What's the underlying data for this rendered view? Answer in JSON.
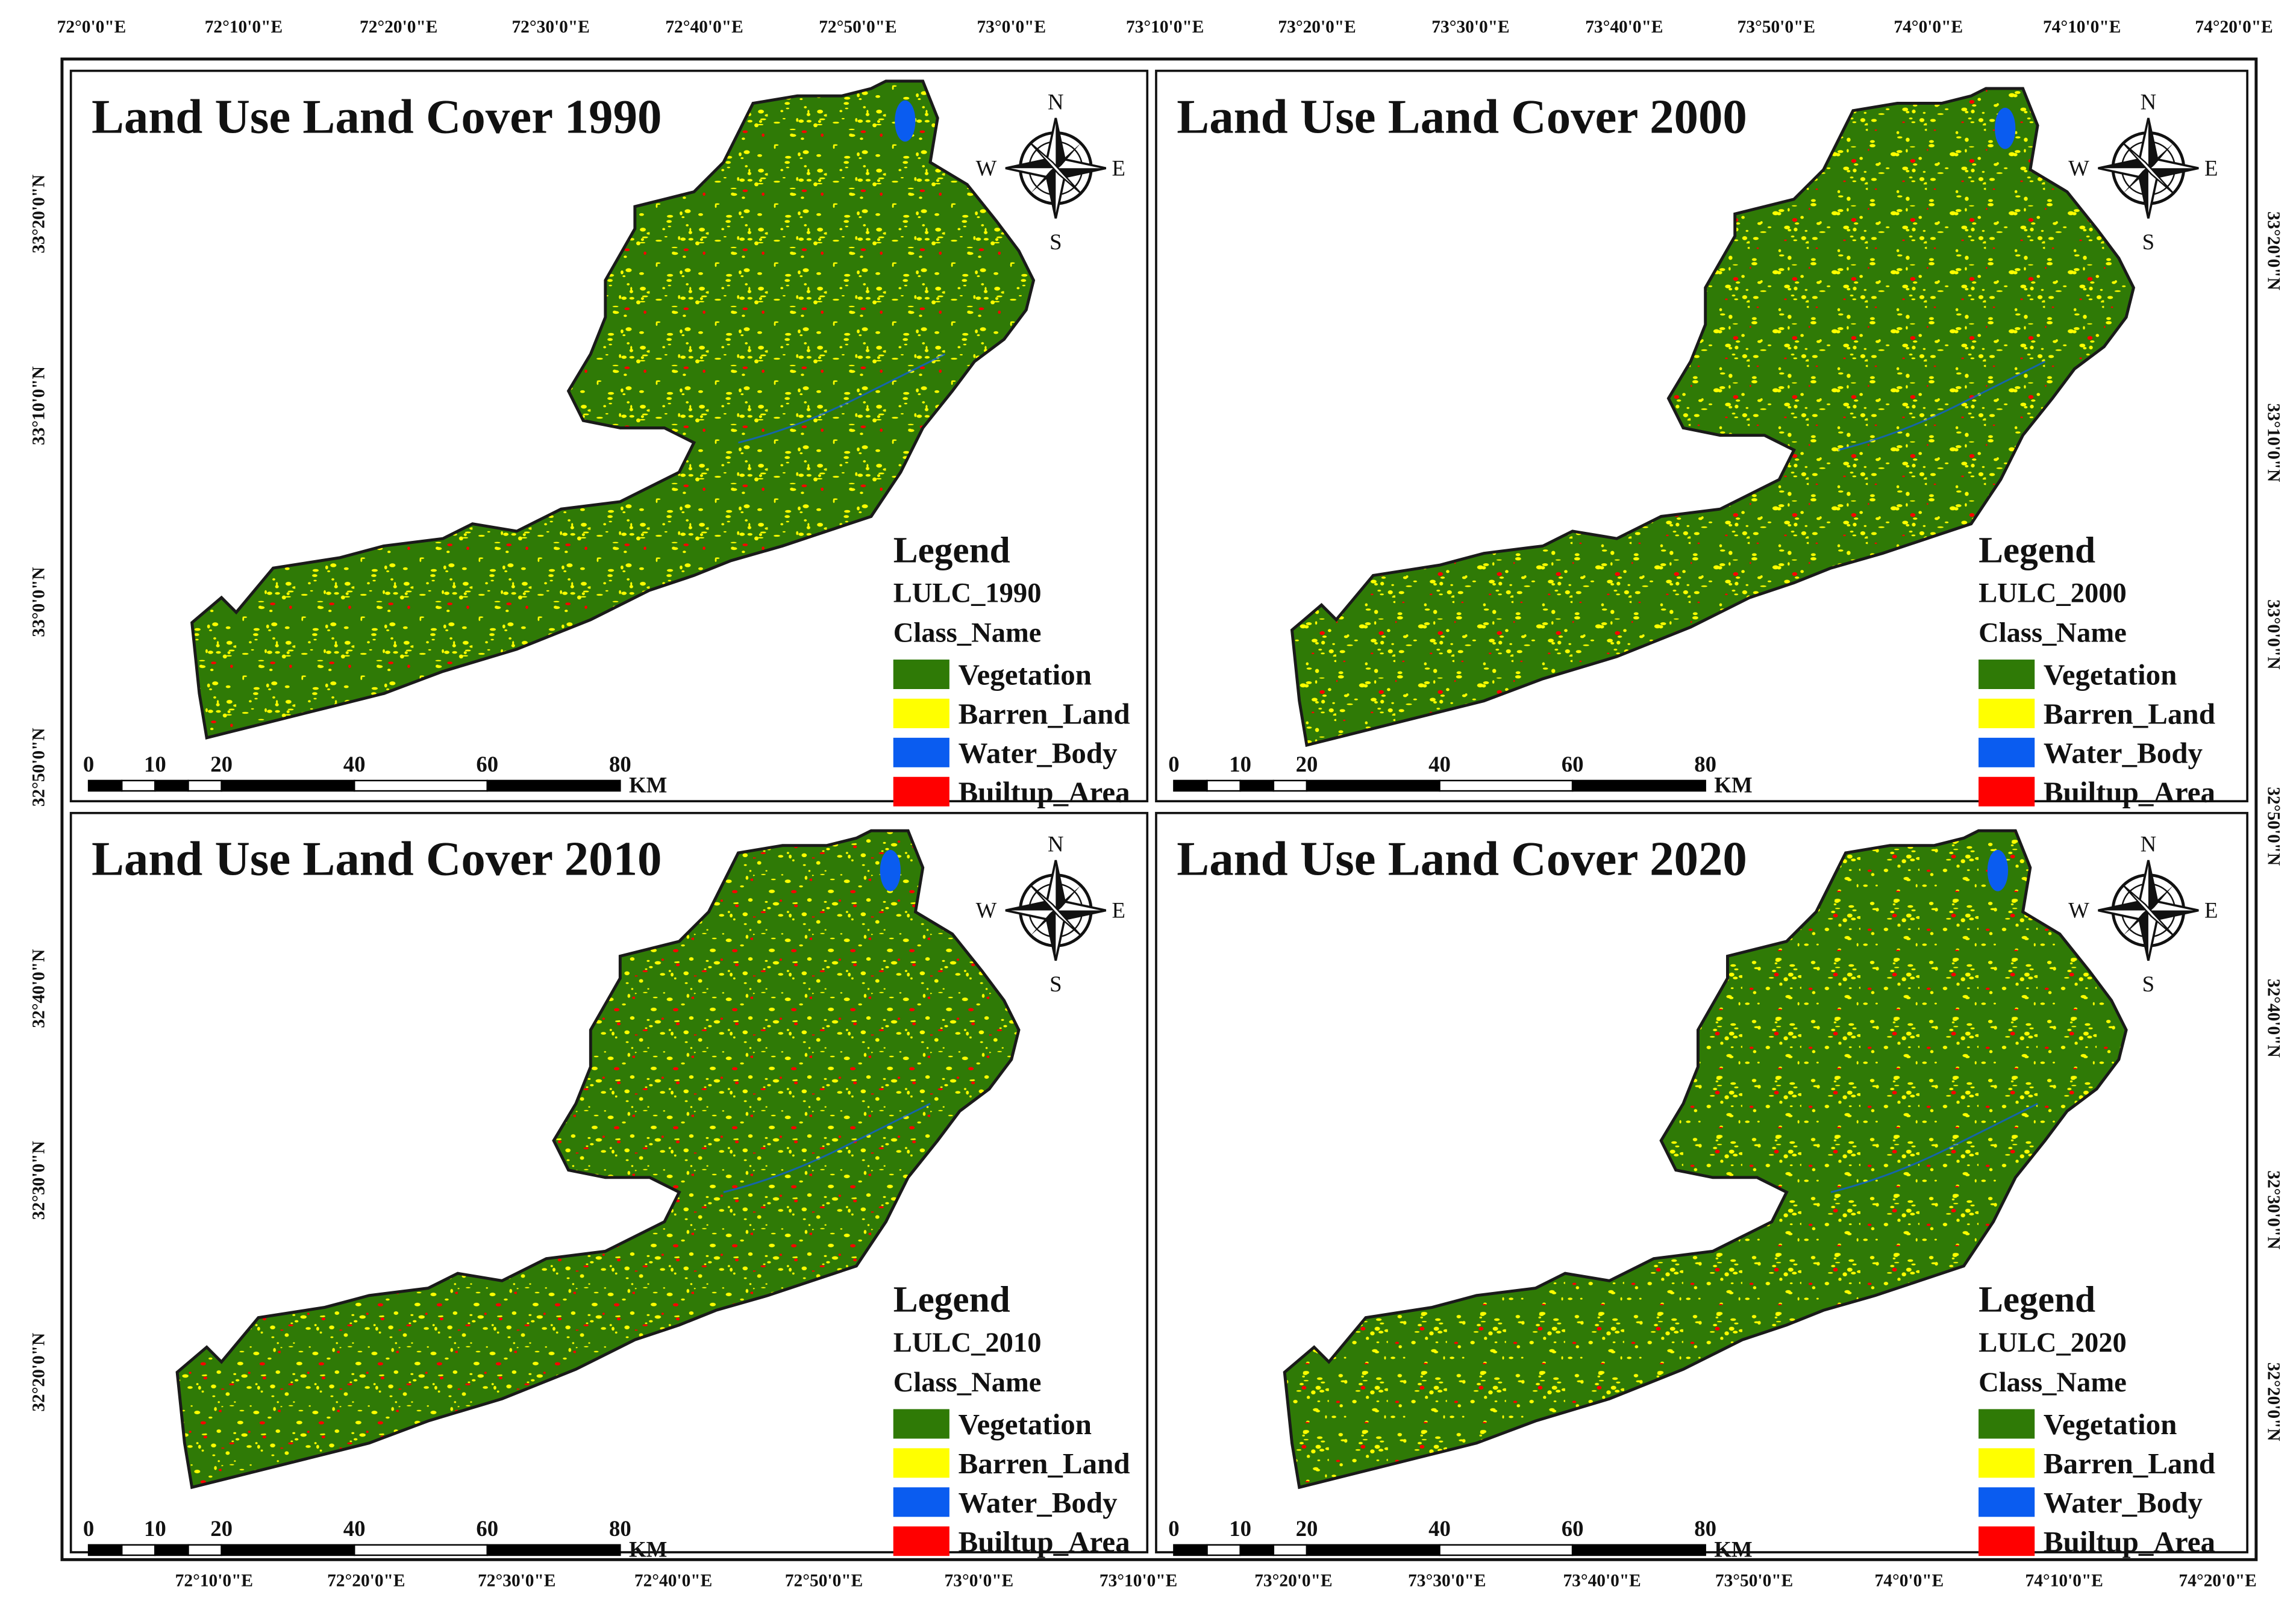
{
  "axes": {
    "top": [
      "72°0'0\"E",
      "72°10'0\"E",
      "72°20'0\"E",
      "72°30'0\"E",
      "72°40'0\"E",
      "72°50'0\"E",
      "73°0'0\"E",
      "73°10'0\"E",
      "73°20'0\"E",
      "73°30'0\"E",
      "73°40'0\"E",
      "73°50'0\"E",
      "74°0'0\"E",
      "74°10'0\"E",
      "74°20'0\"E"
    ],
    "bottom": [
      "72°10'0\"E",
      "72°20'0\"E",
      "72°30'0\"E",
      "72°40'0\"E",
      "72°50'0\"E",
      "73°0'0\"E",
      "73°10'0\"E",
      "73°20'0\"E",
      "73°30'0\"E",
      "73°40'0\"E",
      "73°50'0\"E",
      "74°0'0\"E",
      "74°10'0\"E",
      "74°20'0\"E"
    ],
    "left": [
      "33°20'0\"N",
      "33°10'0\"N",
      "33°0'0\"N",
      "32°50'0\"N",
      "32°40'0\"N",
      "32°30'0\"N",
      "32°20'0\"N"
    ],
    "right": [
      "33°20'0\"N",
      "33°10'0\"N",
      "33°0'0\"N",
      "32°50'0\"N",
      "32°40'0\"N",
      "32°30'0\"N",
      "32°20'0\"N"
    ]
  },
  "panels": [
    {
      "title": "Land Use Land Cover 1990",
      "legend": {
        "heading": "Legend",
        "layer": "LULC_1990",
        "field": "Class_Name",
        "classes": [
          {
            "name": "Vegetation",
            "color": "#2f7a06"
          },
          {
            "name": "Barren_Land",
            "color": "#ffff00"
          },
          {
            "name": "Water_Body",
            "color": "#0a5cf0"
          },
          {
            "name": "Builtup_Area",
            "color": "#ff0000"
          }
        ]
      },
      "compass": {
        "n": "N",
        "s": "S",
        "e": "E",
        "w": "W"
      },
      "scale": {
        "ticks": [
          0,
          10,
          20,
          40,
          60,
          80
        ],
        "unit": "KM"
      }
    },
    {
      "title": "Land Use Land Cover 2000",
      "legend": {
        "heading": "Legend",
        "layer": "LULC_2000",
        "field": "Class_Name",
        "classes": [
          {
            "name": "Vegetation",
            "color": "#2f7a06"
          },
          {
            "name": "Barren_Land",
            "color": "#ffff00"
          },
          {
            "name": "Water_Body",
            "color": "#0a5cf0"
          },
          {
            "name": "Builtup_Area",
            "color": "#ff0000"
          }
        ]
      },
      "compass": {
        "n": "N",
        "s": "S",
        "e": "E",
        "w": "W"
      },
      "scale": {
        "ticks": [
          0,
          10,
          20,
          40,
          60,
          80
        ],
        "unit": "KM"
      }
    },
    {
      "title": "Land Use Land Cover 2010",
      "legend": {
        "heading": "Legend",
        "layer": "LULC_2010",
        "field": "Class_Name",
        "classes": [
          {
            "name": "Vegetation",
            "color": "#2f7a06"
          },
          {
            "name": "Barren_Land",
            "color": "#ffff00"
          },
          {
            "name": "Water_Body",
            "color": "#0a5cf0"
          },
          {
            "name": "Builtup_Area",
            "color": "#ff0000"
          }
        ]
      },
      "compass": {
        "n": "N",
        "s": "S",
        "e": "E",
        "w": "W"
      },
      "scale": {
        "ticks": [
          0,
          10,
          20,
          40,
          60,
          80
        ],
        "unit": "KM"
      }
    },
    {
      "title": "Land Use Land Cover 2020",
      "legend": {
        "heading": "Legend",
        "layer": "LULC_2020",
        "field": "Class_Name",
        "classes": [
          {
            "name": "Vegetation",
            "color": "#2f7a06"
          },
          {
            "name": "Barren_Land",
            "color": "#ffff00"
          },
          {
            "name": "Water_Body",
            "color": "#0a5cf0"
          },
          {
            "name": "Builtup_Area",
            "color": "#ff0000"
          }
        ]
      },
      "compass": {
        "n": "N",
        "s": "S",
        "e": "E",
        "w": "W"
      },
      "scale": {
        "ticks": [
          0,
          10,
          20,
          40,
          60,
          80
        ],
        "unit": "KM"
      }
    }
  ]
}
